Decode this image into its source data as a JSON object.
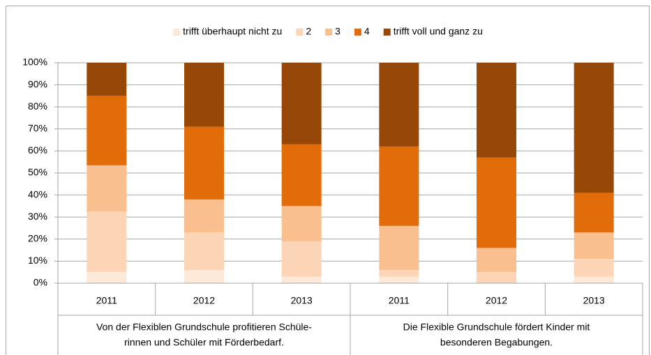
{
  "chart_data": {
    "type": "stacked_bar",
    "categories": [
      "2011",
      "2012",
      "2013",
      "2011",
      "2012",
      "2013"
    ],
    "group_labels": [
      [
        "Von der Flexiblen Grundschule profitieren Schüle-",
        "rinnen und Schüler mit Förderbedarf."
      ],
      [
        "Die Flexible Grundschule fördert Kinder mit",
        "besonderen Begabungen."
      ]
    ],
    "series": [
      {
        "name": "trifft überhaupt nicht zu",
        "color": "#fde9d9",
        "values": [
          5,
          6,
          3,
          3,
          0,
          3
        ]
      },
      {
        "name": "2",
        "color": "#fbd5b5",
        "values": [
          27.5,
          17,
          16,
          3,
          5,
          8
        ]
      },
      {
        "name": "3",
        "color": "#f9bf8f",
        "values": [
          21,
          15,
          16,
          20,
          11,
          12
        ]
      },
      {
        "name": "4",
        "color": "#e26b0a",
        "values": [
          31.5,
          33,
          28,
          36,
          41,
          18
        ]
      },
      {
        "name": "trifft voll und ganz zu",
        "color": "#974706",
        "values": [
          15,
          29,
          37,
          38,
          43,
          59
        ]
      }
    ],
    "ylim": [
      0,
      100
    ],
    "yticks": [
      {
        "value": 0,
        "label": "0%"
      },
      {
        "value": 10,
        "label": "10%"
      },
      {
        "value": 20,
        "label": "20%"
      },
      {
        "value": 30,
        "label": "30%"
      },
      {
        "value": 40,
        "label": "40%"
      },
      {
        "value": 50,
        "label": "50%"
      },
      {
        "value": 60,
        "label": "60%"
      },
      {
        "value": 70,
        "label": "70%"
      },
      {
        "value": 80,
        "label": "80%"
      },
      {
        "value": 90,
        "label": "90%"
      },
      {
        "value": 100,
        "label": "100%"
      }
    ],
    "grid": true,
    "legend": "top"
  }
}
